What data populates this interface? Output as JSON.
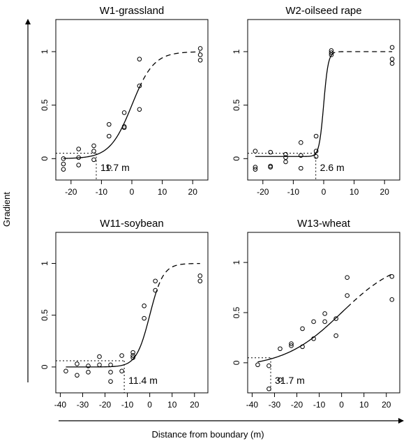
{
  "figure": {
    "ylabel": "Gradient",
    "xlabel": "Distance from boundary (m)"
  },
  "chart_data": [
    {
      "type": "scatter",
      "title": "W1-grassland",
      "xlim": [
        -25,
        25
      ],
      "ylim": [
        -0.2,
        1.3
      ],
      "xticks": [
        "-20",
        "-10",
        "0",
        "10",
        "20"
      ],
      "yticks": [
        "0",
        "0.5",
        "1"
      ],
      "threshold": {
        "label": "11.7 m",
        "x": -11.7,
        "y": 0.05
      },
      "curve": {
        "mid": 0,
        "scale": 3.6,
        "base": 0,
        "top": 1
      },
      "points": [
        {
          "x": -22.5,
          "y": -0.1
        },
        {
          "x": -22.5,
          "y": -0.05
        },
        {
          "x": -22.5,
          "y": 0.0
        },
        {
          "x": -17.5,
          "y": 0.09
        },
        {
          "x": -17.5,
          "y": 0.01
        },
        {
          "x": -17.5,
          "y": -0.06
        },
        {
          "x": -12.5,
          "y": 0.12
        },
        {
          "x": -12.5,
          "y": 0.07
        },
        {
          "x": -12.5,
          "y": -0.01
        },
        {
          "x": -7.5,
          "y": 0.32
        },
        {
          "x": -7.5,
          "y": 0.21
        },
        {
          "x": -7.5,
          "y": -0.08
        },
        {
          "x": -2.5,
          "y": 0.43
        },
        {
          "x": -2.5,
          "y": 0.3
        },
        {
          "x": -2.5,
          "y": 0.29
        },
        {
          "x": 2.5,
          "y": 0.93
        },
        {
          "x": 2.5,
          "y": 0.68
        },
        {
          "x": 2.5,
          "y": 0.46
        },
        {
          "x": 22.5,
          "y": 1.03
        },
        {
          "x": 22.5,
          "y": 0.97
        },
        {
          "x": 22.5,
          "y": 0.92
        }
      ]
    },
    {
      "type": "scatter",
      "title": "W2-oilseed rape",
      "xlim": [
        -25,
        25
      ],
      "ylim": [
        -0.2,
        1.3
      ],
      "xticks": [
        "-20",
        "-10",
        "0",
        "10",
        "20"
      ],
      "yticks": [
        "0",
        "0.5",
        "1"
      ],
      "threshold": {
        "label": "2.6 m",
        "x": -2.6,
        "y": 0.05
      },
      "curve": {
        "mid": 0,
        "scale": 0.75,
        "base": 0.02,
        "top": 1
      },
      "points": [
        {
          "x": -22.5,
          "y": 0.07
        },
        {
          "x": -22.5,
          "y": -0.08
        },
        {
          "x": -22.5,
          "y": -0.1
        },
        {
          "x": -17.5,
          "y": 0.06
        },
        {
          "x": -17.5,
          "y": -0.07
        },
        {
          "x": -17.5,
          "y": -0.08
        },
        {
          "x": -12.5,
          "y": 0.04
        },
        {
          "x": -12.5,
          "y": 0.01
        },
        {
          "x": -12.5,
          "y": -0.03
        },
        {
          "x": -7.5,
          "y": 0.15
        },
        {
          "x": -7.5,
          "y": 0.03
        },
        {
          "x": -7.5,
          "y": -0.09
        },
        {
          "x": -2.5,
          "y": 0.21
        },
        {
          "x": -2.5,
          "y": 0.07
        },
        {
          "x": -2.5,
          "y": 0.02
        },
        {
          "x": 2.5,
          "y": 1.01
        },
        {
          "x": 2.5,
          "y": 0.99
        },
        {
          "x": 2.5,
          "y": 0.97
        },
        {
          "x": 22.5,
          "y": 1.04
        },
        {
          "x": 22.5,
          "y": 0.93
        },
        {
          "x": 22.5,
          "y": 0.89
        }
      ]
    },
    {
      "type": "scatter",
      "title": "W11-soybean",
      "xlim": [
        -42,
        26
      ],
      "ylim": [
        -0.25,
        1.3
      ],
      "xticks": [
        "-40",
        "-30",
        "-20",
        "-10",
        "0",
        "10",
        "20"
      ],
      "yticks": [
        "0",
        "0.5",
        "1"
      ],
      "threshold": {
        "label": "11.4 m",
        "x": -11.4,
        "y": 0.06
      },
      "curve": {
        "mid": 0,
        "scale": 3.0,
        "base": 0,
        "top": 1
      },
      "points": [
        {
          "x": -37.5,
          "y": -0.04
        },
        {
          "x": -32.5,
          "y": 0.03
        },
        {
          "x": -32.5,
          "y": -0.08
        },
        {
          "x": -27.5,
          "y": 0.01
        },
        {
          "x": -27.5,
          "y": -0.05
        },
        {
          "x": -22.5,
          "y": 0.1
        },
        {
          "x": -22.5,
          "y": 0.02
        },
        {
          "x": -17.5,
          "y": 0.02
        },
        {
          "x": -17.5,
          "y": -0.05
        },
        {
          "x": -17.5,
          "y": -0.14
        },
        {
          "x": -12.5,
          "y": 0.11
        },
        {
          "x": -12.5,
          "y": -0.04
        },
        {
          "x": -7.5,
          "y": 0.14
        },
        {
          "x": -7.5,
          "y": 0.11
        },
        {
          "x": -7.5,
          "y": 0.09
        },
        {
          "x": -2.5,
          "y": 0.59
        },
        {
          "x": -2.5,
          "y": 0.47
        },
        {
          "x": 2.5,
          "y": 0.83
        },
        {
          "x": 2.5,
          "y": 0.74
        },
        {
          "x": 22.5,
          "y": 0.88
        },
        {
          "x": 22.5,
          "y": 0.83
        }
      ]
    },
    {
      "type": "scatter",
      "title": "W13-wheat",
      "xlim": [
        -42,
        26
      ],
      "ylim": [
        -0.3,
        1.3
      ],
      "xticks": [
        "-40",
        "-30",
        "-20",
        "-10",
        "0",
        "10",
        "20"
      ],
      "yticks": [
        "0",
        "0.5",
        "1"
      ],
      "threshold": {
        "label": "31.7 m",
        "x": -31.7,
        "y": 0.05
      },
      "curve": {
        "mid": 0,
        "scale": 13,
        "base": -0.05,
        "top": 1.05
      },
      "points": [
        {
          "x": -37.5,
          "y": -0.02
        },
        {
          "x": -32.5,
          "y": -0.03
        },
        {
          "x": -32.5,
          "y": -0.26
        },
        {
          "x": -27.5,
          "y": 0.14
        },
        {
          "x": -27.5,
          "y": -0.17
        },
        {
          "x": -22.5,
          "y": 0.19
        },
        {
          "x": -22.5,
          "y": 0.17
        },
        {
          "x": -17.5,
          "y": 0.34
        },
        {
          "x": -17.5,
          "y": 0.16
        },
        {
          "x": -12.5,
          "y": 0.41
        },
        {
          "x": -12.5,
          "y": 0.24
        },
        {
          "x": -7.5,
          "y": 0.49
        },
        {
          "x": -7.5,
          "y": 0.41
        },
        {
          "x": -2.5,
          "y": 0.44
        },
        {
          "x": -2.5,
          "y": 0.27
        },
        {
          "x": 2.5,
          "y": 0.85
        },
        {
          "x": 2.5,
          "y": 0.67
        },
        {
          "x": 22.5,
          "y": 0.86
        },
        {
          "x": 22.5,
          "y": 0.63
        }
      ]
    }
  ]
}
